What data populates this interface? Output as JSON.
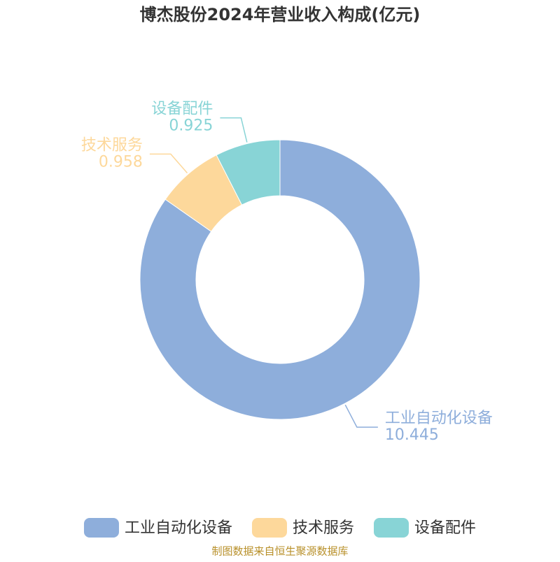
{
  "chart_data": {
    "type": "donut",
    "title": "博杰股份2024年营业收入构成(亿元)",
    "categories": [
      "工业自动化设备",
      "技术服务",
      "设备配件"
    ],
    "values": [
      10.445,
      0.958,
      0.925
    ],
    "colors": [
      "#8eaedb",
      "#fdd89b",
      "#88d4d6"
    ],
    "legend": "bottom",
    "source": "制图数据来自恒生聚源数据库"
  }
}
